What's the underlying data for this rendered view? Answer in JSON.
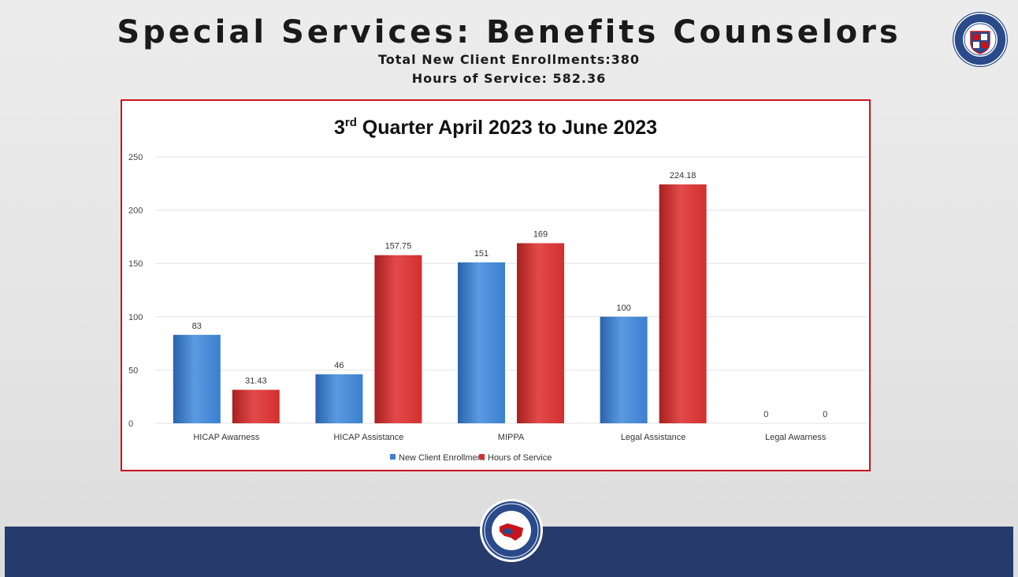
{
  "slide": {
    "title": "Special Services: Benefits Counselors",
    "subtitle_enrollments": "Total New Client Enrollments:380",
    "subtitle_hours": "Hours of Service: 582.36"
  },
  "colors": {
    "new_client": "#3b7fd0",
    "hours": "#d32f2f",
    "frame": "#c8141c",
    "footer": "#263a6b"
  },
  "chart_data": {
    "type": "bar",
    "title_prefix": "3",
    "title_sup": "rd",
    "title_rest": " Quarter April 2023 to June 2023",
    "categories": [
      "HICAP Awarness",
      "HICAP Assistance",
      "MIPPA",
      "Legal Assistance",
      "Legal Awarness"
    ],
    "series": [
      {
        "name": "New Client Enrollment",
        "color": "#3b7fd0",
        "values": [
          83,
          46,
          151,
          100,
          0
        ],
        "labels": [
          "83",
          "46",
          "151",
          "100",
          "0"
        ]
      },
      {
        "name": "Hours of Service",
        "color": "#d32f2f",
        "values": [
          31.43,
          157.75,
          169,
          224.18,
          0
        ],
        "labels": [
          "31.43",
          "157.75",
          "169",
          "224.18",
          "0"
        ]
      }
    ],
    "yticks": [
      0,
      50,
      100,
      150,
      200,
      250
    ],
    "ylim": [
      0,
      250
    ],
    "grid": true,
    "legend": "bottom"
  }
}
